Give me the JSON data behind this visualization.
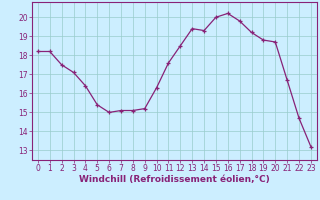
{
  "x": [
    0,
    1,
    2,
    3,
    4,
    5,
    6,
    7,
    8,
    9,
    10,
    11,
    12,
    13,
    14,
    15,
    16,
    17,
    18,
    19,
    20,
    21,
    22,
    23
  ],
  "y": [
    18.2,
    18.2,
    17.5,
    17.1,
    16.4,
    15.4,
    15.0,
    15.1,
    15.1,
    15.2,
    16.3,
    17.6,
    18.5,
    19.4,
    19.3,
    20.0,
    20.2,
    19.8,
    19.2,
    18.8,
    18.7,
    16.7,
    14.7,
    13.2
  ],
  "line_color": "#882277",
  "marker": "+",
  "bg_color": "#cceeff",
  "grid_color": "#99cccc",
  "tick_color": "#882277",
  "xlabel": "Windchill (Refroidissement éolien,°C)",
  "xlabel_fontsize": 6.5,
  "xlim": [
    -0.5,
    23.5
  ],
  "ylim": [
    12.5,
    20.8
  ],
  "yticks": [
    13,
    14,
    15,
    16,
    17,
    18,
    19,
    20
  ],
  "xticks": [
    0,
    1,
    2,
    3,
    4,
    5,
    6,
    7,
    8,
    9,
    10,
    11,
    12,
    13,
    14,
    15,
    16,
    17,
    18,
    19,
    20,
    21,
    22,
    23
  ],
  "tick_fontsize": 5.5,
  "linewidth": 0.9,
  "markersize": 3.5,
  "markeredgewidth": 0.9
}
